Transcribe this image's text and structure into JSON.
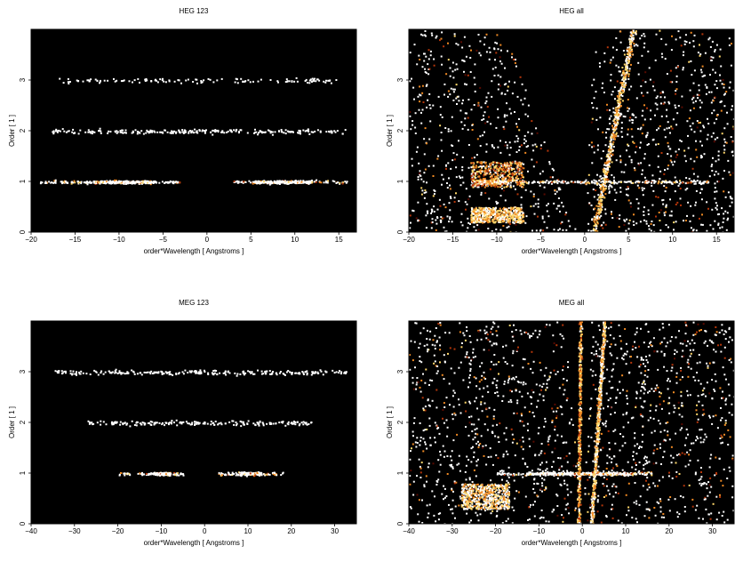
{
  "chart_data": [
    {
      "type": "heatmap",
      "title": "HEG 123",
      "xlabel": "order*Wavelength [ Angstroms ]",
      "ylabel": "Order [ 1 ]",
      "xlim": [
        -20,
        17
      ],
      "ylim": [
        0,
        4
      ],
      "xticks": [
        -20,
        -15,
        -10,
        -5,
        0,
        5,
        10,
        15
      ],
      "yticks": [
        0,
        1,
        2,
        3
      ],
      "background": "#000000",
      "colormap": [
        "#5a0a00",
        "#b5360a",
        "#f08a24",
        "#ffd86b",
        "#ffffff"
      ],
      "features": [
        {
          "kind": "band",
          "y": 1,
          "x": [
            -19,
            -3
          ],
          "peak": [
            -13,
            -6
          ],
          "intensity": 0.85
        },
        {
          "kind": "band",
          "y": 1,
          "x": [
            3,
            16
          ],
          "peak": [
            5,
            12
          ],
          "intensity": 0.85
        },
        {
          "kind": "band",
          "y": 2,
          "x": [
            -18,
            16
          ],
          "intensity": 0.25
        },
        {
          "kind": "band",
          "y": 3,
          "x": [
            -17,
            15
          ],
          "intensity": 0.12
        }
      ]
    },
    {
      "type": "heatmap",
      "title": "HEG all",
      "xlabel": "order*Wavelength [ Angstroms ]",
      "ylabel": "Order [ 1 ]",
      "xlim": [
        -20,
        17
      ],
      "ylim": [
        0,
        4
      ],
      "xticks": [
        -20,
        -15,
        -10,
        -5,
        0,
        5,
        10,
        15
      ],
      "yticks": [
        0,
        1,
        2,
        3
      ],
      "background": "#000000",
      "colormap": [
        "#5a0a00",
        "#b5360a",
        "#f08a24",
        "#ffd86b",
        "#ffffff"
      ],
      "features": [
        {
          "kind": "background",
          "intensity": 0.6
        },
        {
          "kind": "band",
          "y": 1,
          "x": [
            -13,
            14
          ],
          "peak": [
            -12,
            -9
          ],
          "intensity": 0.9
        },
        {
          "kind": "blob",
          "x": [
            -13,
            -7
          ],
          "y": [
            0.2,
            0.5
          ],
          "intensity": 0.85
        },
        {
          "kind": "blob",
          "x": [
            -13,
            -7
          ],
          "y": [
            0.9,
            1.4
          ],
          "intensity": 0.6
        },
        {
          "kind": "streak",
          "x": [
            1,
            5.5
          ],
          "y": [
            0,
            4
          ],
          "intensity": 0.8
        },
        {
          "kind": "wedge-gap",
          "x_at_top": [
            -9,
            1
          ],
          "x_at_bottom": [
            -1,
            0
          ]
        }
      ]
    },
    {
      "type": "heatmap",
      "title": "MEG 123",
      "xlabel": "order*Wavelength [ Angstroms ]",
      "ylabel": "Order [ 1 ]",
      "xlim": [
        -40,
        35
      ],
      "ylim": [
        0,
        4
      ],
      "xticks": [
        -40,
        -30,
        -20,
        -10,
        0,
        10,
        20,
        30
      ],
      "yticks": [
        0,
        1,
        2,
        3
      ],
      "background": "#000000",
      "colormap": [
        "#5a0a00",
        "#b5360a",
        "#f08a24",
        "#ffd86b",
        "#ffffff"
      ],
      "features": [
        {
          "kind": "band",
          "y": 1,
          "x": [
            -20,
            -5
          ],
          "peak": [
            -12,
            -8
          ],
          "intensity": 0.95
        },
        {
          "kind": "band",
          "y": 1,
          "x": [
            3,
            18
          ],
          "peak": [
            8,
            13
          ],
          "intensity": 0.95
        },
        {
          "kind": "band",
          "y": 2,
          "x": [
            -27,
            25
          ],
          "intensity": 0.25
        },
        {
          "kind": "band",
          "y": 3,
          "x": [
            -36,
            33
          ],
          "intensity": 0.25
        }
      ]
    },
    {
      "type": "heatmap",
      "title": "MEG all",
      "xlabel": "order*Wavelength [ Angstroms ]",
      "ylabel": "Order [ 1 ]",
      "xlim": [
        -40,
        35
      ],
      "ylim": [
        0,
        4
      ],
      "xticks": [
        -40,
        -30,
        -20,
        -10,
        0,
        10,
        20,
        30
      ],
      "yticks": [
        0,
        1,
        2,
        3
      ],
      "background": "#000000",
      "colormap": [
        "#5a0a00",
        "#b5360a",
        "#f08a24",
        "#ffd86b",
        "#ffffff"
      ],
      "features": [
        {
          "kind": "background",
          "intensity": 0.6
        },
        {
          "kind": "band",
          "y": 1,
          "x": [
            -20,
            16
          ],
          "peak": [
            -13,
            12
          ],
          "intensity": 0.95
        },
        {
          "kind": "blob",
          "x": [
            -28,
            -17
          ],
          "y": [
            0.3,
            0.8
          ],
          "intensity": 0.9
        },
        {
          "kind": "streak",
          "x": [
            2,
            5
          ],
          "y": [
            0,
            4
          ],
          "intensity": 0.85
        },
        {
          "kind": "streak",
          "x": [
            -1,
            -0.5
          ],
          "y": [
            0,
            4
          ],
          "intensity": 0.6
        },
        {
          "kind": "wedge-gap",
          "x_at_top": [
            -4,
            2
          ],
          "x_at_bottom": [
            0,
            0
          ]
        }
      ]
    }
  ]
}
